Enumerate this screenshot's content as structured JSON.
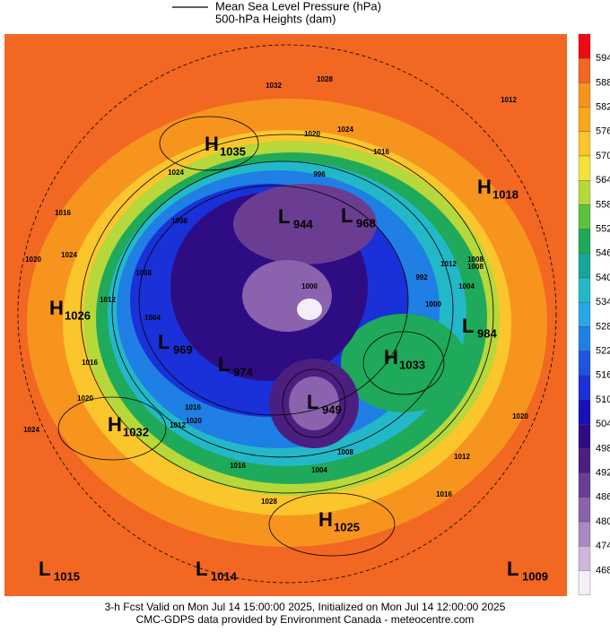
{
  "legend": {
    "items": [
      "Mean Sea Level Pressure (hPa)",
      "500-hPa Heights (dam)"
    ]
  },
  "colorbar": {
    "labels": [
      594,
      588,
      582,
      576,
      570,
      564,
      558,
      552,
      546,
      540,
      534,
      528,
      522,
      516,
      510,
      504,
      498,
      492,
      486,
      480,
      474,
      468
    ],
    "colors": [
      "#ee0a14",
      "#f26722",
      "#f7941e",
      "#f9a81c",
      "#fbc52c",
      "#f4e23a",
      "#b6d83a",
      "#5cc23e",
      "#1fa95a",
      "#17a69a",
      "#22b8c8",
      "#2aa6e6",
      "#1f7fe4",
      "#1d55e0",
      "#1a30d8",
      "#1610b8",
      "#2e0c84",
      "#4b1e80",
      "#6a3d92",
      "#8a62ad",
      "#a988c5",
      "#cdb7dd",
      "#f4eef8"
    ]
  },
  "centers": [
    {
      "type": "H",
      "value": "1035"
    },
    {
      "type": "L",
      "value": "944"
    },
    {
      "type": "L",
      "value": "968"
    },
    {
      "type": "H",
      "value": "1018"
    },
    {
      "type": "H",
      "value": "1026"
    },
    {
      "type": "L",
      "value": "969"
    },
    {
      "type": "L",
      "value": "974"
    },
    {
      "type": "H",
      "value": "1033"
    },
    {
      "type": "L",
      "value": "984"
    },
    {
      "type": "L",
      "value": "949"
    },
    {
      "type": "H",
      "value": "1032"
    },
    {
      "type": "H",
      "value": "1025"
    },
    {
      "type": "L",
      "value": "1015"
    },
    {
      "type": "L",
      "value": "1014"
    },
    {
      "type": "L",
      "value": "1009"
    }
  ],
  "contour_labels": [
    "1032",
    "1028",
    "1024",
    "1020",
    "1016",
    "1012",
    "1024",
    "1008",
    "1016",
    "1020",
    "1024",
    "1004",
    "1008",
    "1000",
    "996",
    "992",
    "1000",
    "1012",
    "1016",
    "1020",
    "1024",
    "1008",
    "1004",
    "1016",
    "1012",
    "1020",
    "1016",
    "1020",
    "1028",
    "1016",
    "1012",
    "1008",
    "1004",
    "1008",
    "1012"
  ],
  "footer": [
    "3-h Fcst Valid on Mon Jul 14 15:00:00 2025, Initialized on Mon Jul 14 12:00:00 2025",
    "CMC-GDPS data provided by Environment Canada - meteocentre.com"
  ]
}
